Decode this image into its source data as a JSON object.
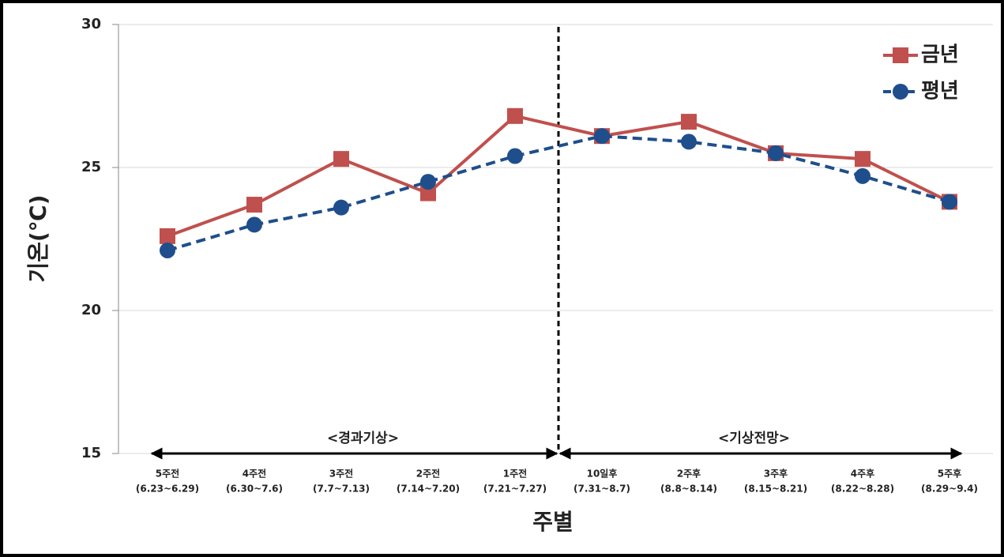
{
  "chart_data": {
    "type": "line",
    "y_label": "기온(℃)",
    "x_label": "주별",
    "categories": [
      "5주전",
      "4주전",
      "3주전",
      "2주전",
      "1주전",
      "10일후",
      "2주후",
      "3주후",
      "4주후",
      "5주후"
    ],
    "category_periods": [
      "(6.23~6.29)",
      "(6.30~7.6)",
      "(7.7~7.13)",
      "(7.14~7.20)",
      "(7.21~7.27)",
      "(7.31~8.7)",
      "(8.8~8.14)",
      "(8.15~8.21)",
      "(8.22~8.28)",
      "(8.29~9.4)"
    ],
    "series": [
      {
        "name": "금년",
        "color": "#c0504d",
        "marker": "square",
        "dashed": false,
        "values": [
          22.6,
          23.7,
          25.3,
          24.1,
          26.8,
          26.1,
          26.6,
          25.5,
          25.3,
          23.8
        ]
      },
      {
        "name": "평년",
        "color": "#1f4e8c",
        "marker": "circle",
        "dashed": true,
        "values": [
          22.1,
          23.0,
          23.6,
          24.5,
          25.4,
          26.1,
          25.9,
          25.5,
          24.7,
          23.8
        ]
      }
    ],
    "annotations": [
      "<경과기상>",
      "<기상전망>"
    ],
    "ylim": [
      15,
      30
    ],
    "yticks": [
      15,
      20,
      25,
      30
    ],
    "grid": true,
    "legend": "top-right"
  }
}
